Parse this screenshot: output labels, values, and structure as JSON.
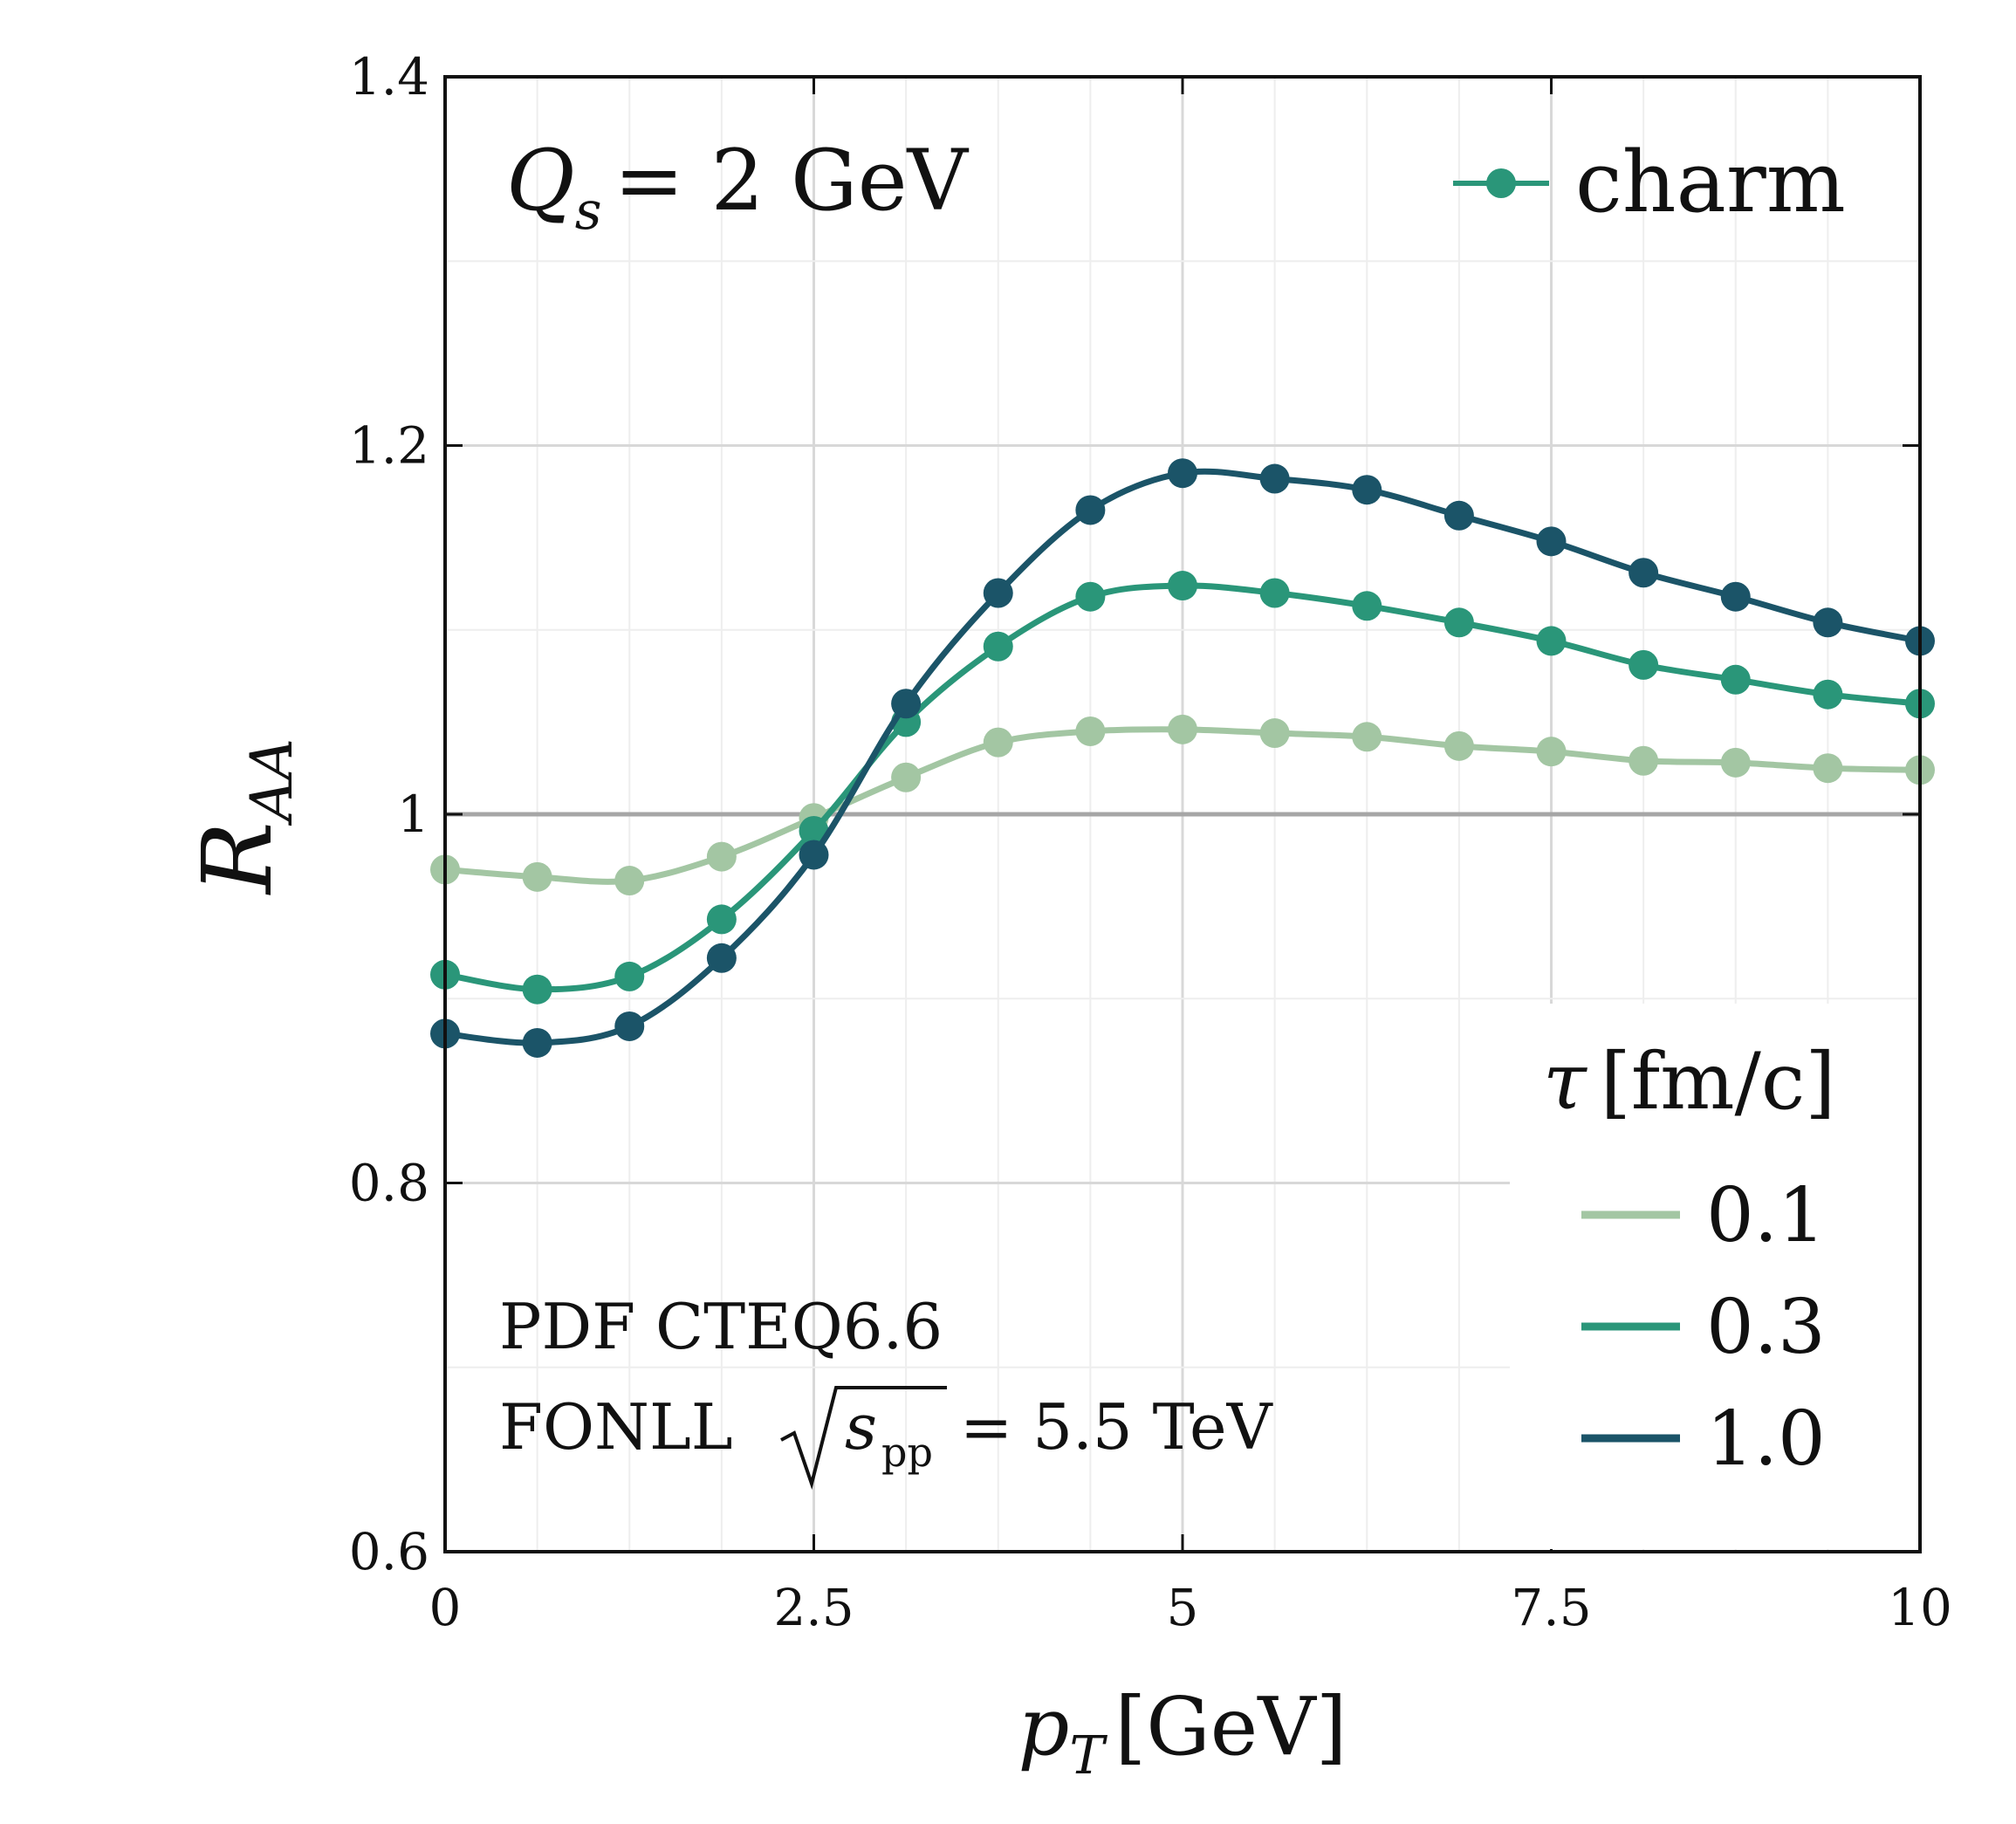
{
  "chart_data": {
    "type": "line",
    "annotation_top_left": {
      "q": "Q",
      "sub": "s",
      "rest": "= 2 GeV"
    },
    "annotation_bottom_left": {
      "line1": "PDF CTEQ6.6",
      "line2_prefix": "FONLL",
      "line2_s": "s",
      "line2_sub": "pp",
      "line2_suffix": "= 5.5 TeV"
    },
    "xlabel": {
      "var": "p",
      "sub": "T",
      "unit": "[GeV]"
    },
    "ylabel": {
      "var": "R",
      "sub": "AA"
    },
    "xlim": [
      0,
      10
    ],
    "ylim": [
      0.6,
      1.4
    ],
    "x_ticks": [
      {
        "value": 0,
        "label": "0"
      },
      {
        "value": 2.5,
        "label": "2.5"
      },
      {
        "value": 5,
        "label": "5"
      },
      {
        "value": 7.5,
        "label": "7.5"
      },
      {
        "value": 10,
        "label": "10"
      }
    ],
    "y_ticks": [
      {
        "value": 0.6,
        "label": "0.6"
      },
      {
        "value": 0.8,
        "label": "0.8"
      },
      {
        "value": 1.0,
        "label": "1"
      },
      {
        "value": 1.2,
        "label": "1.2"
      },
      {
        "value": 1.4,
        "label": "1.4"
      }
    ],
    "grid": true,
    "reference_line": 1.0,
    "marker_legend": {
      "label": "charm",
      "color": "#2a9679",
      "placement": "top-right"
    },
    "series_legend": {
      "title_var": "τ",
      "title_unit": "[fm/c]",
      "placement": "bottom-right"
    },
    "x": [
      0,
      0.625,
      1.25,
      1.875,
      2.5,
      3.125,
      3.75,
      4.375,
      5.0,
      5.625,
      6.25,
      6.875,
      7.5,
      8.125,
      8.75,
      9.375,
      10.0
    ],
    "series": [
      {
        "name": "0.1",
        "color": "#a3c6a3",
        "values": [
          0.97,
          0.966,
          0.964,
          0.977,
          0.998,
          1.02,
          1.039,
          1.045,
          1.046,
          1.044,
          1.042,
          1.037,
          1.034,
          1.029,
          1.028,
          1.025,
          1.024
        ]
      },
      {
        "name": "0.3",
        "color": "#2a9679",
        "values": [
          0.913,
          0.905,
          0.912,
          0.943,
          0.991,
          1.05,
          1.091,
          1.118,
          1.124,
          1.12,
          1.113,
          1.104,
          1.094,
          1.081,
          1.073,
          1.065,
          1.06
        ]
      },
      {
        "name": "1.0",
        "color": "#1b5468",
        "values": [
          0.881,
          0.876,
          0.885,
          0.922,
          0.978,
          1.06,
          1.12,
          1.165,
          1.185,
          1.182,
          1.176,
          1.162,
          1.148,
          1.131,
          1.118,
          1.104,
          1.094
        ]
      }
    ]
  }
}
